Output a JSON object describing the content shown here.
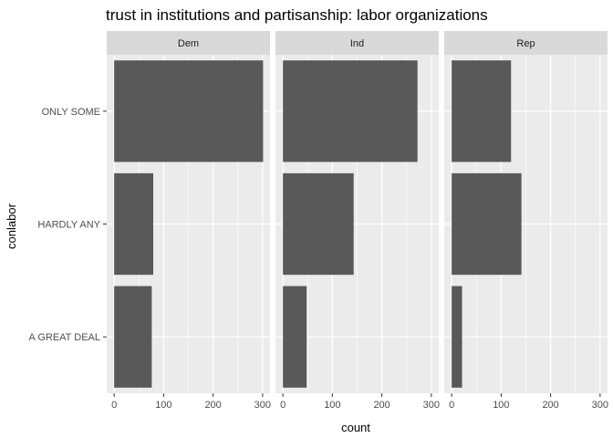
{
  "chart_data": {
    "type": "bar",
    "orientation": "horizontal",
    "title": "trust in institutions and partisanship: labor organizations",
    "xlabel": "count",
    "ylabel": "conlabor",
    "categories": [
      "A GREAT DEAL",
      "HARDLY ANY",
      "ONLY SOME"
    ],
    "x_ticks": [
      0,
      100,
      200,
      300
    ],
    "xlim": [
      -15,
      315
    ],
    "grid": true,
    "legend": "none",
    "colors": {
      "bar": "#595959",
      "panel": "#ebebeb",
      "strip": "#d9d9d9",
      "grid": "#ffffff"
    },
    "panels": [
      {
        "name": "Dem",
        "values": [
          76,
          79,
          301
        ]
      },
      {
        "name": "Ind",
        "values": [
          48,
          143,
          272
        ]
      },
      {
        "name": "Rep",
        "values": [
          21,
          141,
          120
        ]
      }
    ]
  }
}
